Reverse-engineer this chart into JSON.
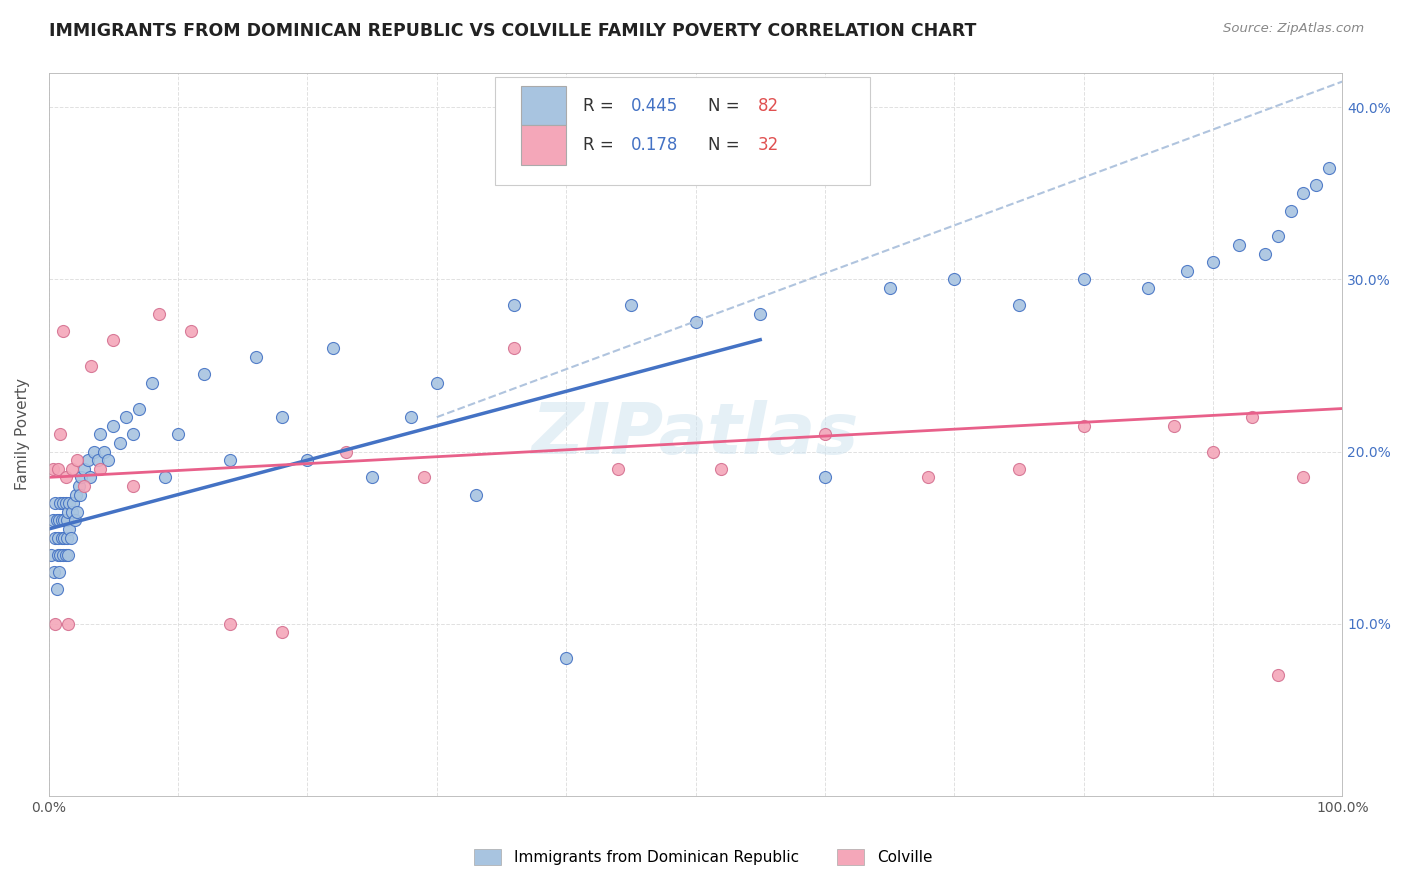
{
  "title": "IMMIGRANTS FROM DOMINICAN REPUBLIC VS COLVILLE FAMILY POVERTY CORRELATION CHART",
  "source": "Source: ZipAtlas.com",
  "ylabel": "Family Poverty",
  "xlim": [
    0,
    1.0
  ],
  "ylim": [
    0,
    0.42
  ],
  "x_ticks": [
    0.0,
    0.1,
    0.2,
    0.3,
    0.4,
    0.5,
    0.6,
    0.7,
    0.8,
    0.9,
    1.0
  ],
  "x_tick_labels": [
    "0.0%",
    "",
    "",
    "",
    "",
    "",
    "",
    "",
    "",
    "",
    "100.0%"
  ],
  "y_ticks": [
    0.0,
    0.1,
    0.2,
    0.3,
    0.4
  ],
  "y_tick_labels_left": [
    "",
    "",
    "",
    "",
    ""
  ],
  "y_tick_labels_right": [
    "",
    "10.0%",
    "20.0%",
    "30.0%",
    "40.0%"
  ],
  "legend_r1": "R = 0.445",
  "legend_n1": "N = 82",
  "legend_r2": "R =  0.178",
  "legend_n2": "N = 32",
  "color_blue": "#a8c4e0",
  "color_blue_dark": "#4472c4",
  "color_pink": "#f4a7b9",
  "color_pink_line": "#e8608a",
  "color_dashed": "#b0c4de",
  "watermark": "ZIPatlas",
  "blue_scatter_x": [
    0.002,
    0.003,
    0.004,
    0.005,
    0.005,
    0.006,
    0.006,
    0.007,
    0.007,
    0.008,
    0.008,
    0.009,
    0.009,
    0.01,
    0.01,
    0.011,
    0.011,
    0.012,
    0.012,
    0.013,
    0.013,
    0.014,
    0.014,
    0.015,
    0.015,
    0.016,
    0.016,
    0.017,
    0.018,
    0.019,
    0.02,
    0.021,
    0.022,
    0.023,
    0.024,
    0.025,
    0.027,
    0.03,
    0.032,
    0.035,
    0.038,
    0.04,
    0.043,
    0.046,
    0.05,
    0.055,
    0.06,
    0.065,
    0.07,
    0.08,
    0.09,
    0.1,
    0.12,
    0.14,
    0.16,
    0.18,
    0.2,
    0.22,
    0.25,
    0.28,
    0.3,
    0.33,
    0.36,
    0.4,
    0.45,
    0.5,
    0.55,
    0.6,
    0.65,
    0.7,
    0.75,
    0.8,
    0.85,
    0.88,
    0.9,
    0.92,
    0.94,
    0.95,
    0.96,
    0.97,
    0.98,
    0.99
  ],
  "blue_scatter_y": [
    0.14,
    0.16,
    0.13,
    0.15,
    0.17,
    0.12,
    0.16,
    0.14,
    0.15,
    0.13,
    0.16,
    0.14,
    0.17,
    0.15,
    0.16,
    0.14,
    0.17,
    0.15,
    0.16,
    0.14,
    0.17,
    0.15,
    0.16,
    0.14,
    0.165,
    0.155,
    0.17,
    0.15,
    0.165,
    0.17,
    0.16,
    0.175,
    0.165,
    0.18,
    0.175,
    0.185,
    0.19,
    0.195,
    0.185,
    0.2,
    0.195,
    0.21,
    0.2,
    0.195,
    0.215,
    0.205,
    0.22,
    0.21,
    0.225,
    0.24,
    0.185,
    0.21,
    0.245,
    0.195,
    0.255,
    0.22,
    0.195,
    0.26,
    0.185,
    0.22,
    0.24,
    0.175,
    0.285,
    0.08,
    0.285,
    0.275,
    0.28,
    0.185,
    0.295,
    0.3,
    0.285,
    0.3,
    0.295,
    0.305,
    0.31,
    0.32,
    0.315,
    0.325,
    0.34,
    0.35,
    0.355,
    0.365
  ],
  "pink_scatter_x": [
    0.003,
    0.005,
    0.007,
    0.009,
    0.011,
    0.013,
    0.015,
    0.018,
    0.022,
    0.027,
    0.033,
    0.04,
    0.05,
    0.065,
    0.085,
    0.11,
    0.14,
    0.18,
    0.23,
    0.29,
    0.36,
    0.44,
    0.52,
    0.6,
    0.68,
    0.75,
    0.8,
    0.87,
    0.9,
    0.93,
    0.95,
    0.97
  ],
  "pink_scatter_y": [
    0.19,
    0.1,
    0.19,
    0.21,
    0.27,
    0.185,
    0.1,
    0.19,
    0.195,
    0.18,
    0.25,
    0.19,
    0.265,
    0.18,
    0.28,
    0.27,
    0.1,
    0.095,
    0.2,
    0.185,
    0.26,
    0.19,
    0.19,
    0.21,
    0.185,
    0.19,
    0.215,
    0.215,
    0.2,
    0.22,
    0.07,
    0.185
  ],
  "blue_line_x0": 0.0,
  "blue_line_y0": 0.155,
  "blue_line_x1": 0.55,
  "blue_line_y1": 0.265,
  "dashed_line_x0": 0.3,
  "dashed_line_y0": 0.22,
  "dashed_line_x1": 1.0,
  "dashed_line_y1": 0.415,
  "pink_line_x0": 0.0,
  "pink_line_y0": 0.185,
  "pink_line_x1": 1.0,
  "pink_line_y1": 0.225
}
